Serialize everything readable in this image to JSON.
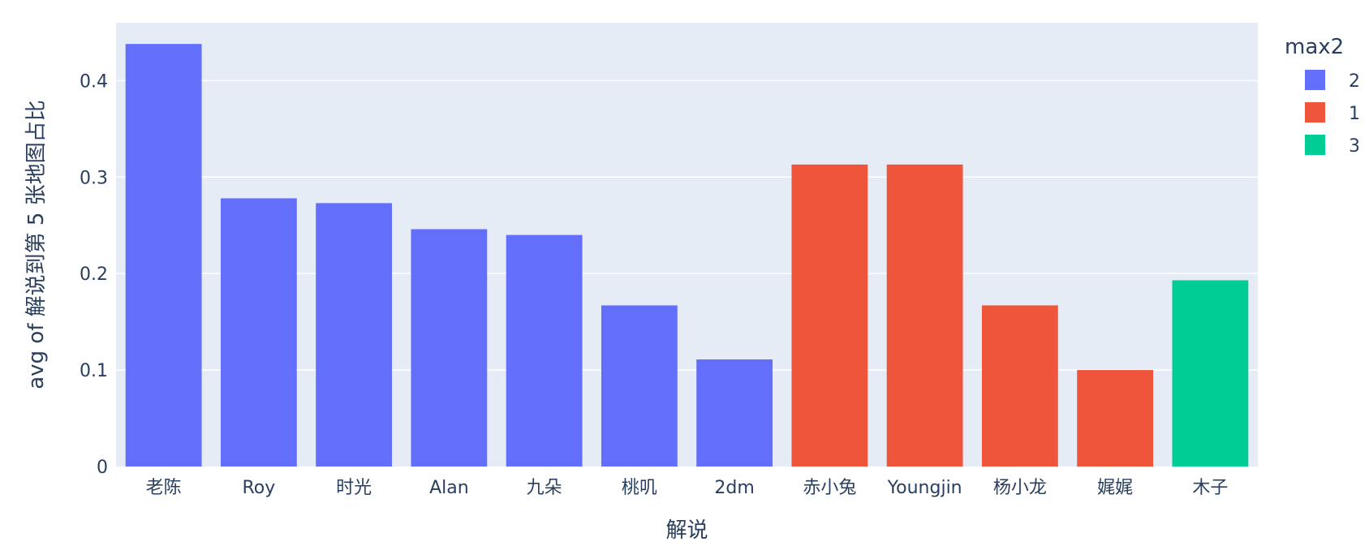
{
  "chart_data": {
    "type": "bar",
    "xlabel": "解说",
    "ylabel": "avg of 解说到第 5 张地图占比",
    "ylim": [
      0,
      0.46
    ],
    "yticks": [
      0,
      0.1,
      0.2,
      0.3,
      0.4
    ],
    "ytick_labels": [
      "0",
      "0.1",
      "0.2",
      "0.3",
      "0.4"
    ],
    "grid": true,
    "legend": {
      "title": "max2",
      "placement": "top-right",
      "entries": [
        {
          "name": "2",
          "color": "#636efa"
        },
        {
          "name": "1",
          "color": "#ef553b"
        },
        {
          "name": "3",
          "color": "#00cc96"
        }
      ]
    },
    "categories": [
      "老陈",
      "Roy",
      "时光",
      "Alan",
      "九朵",
      "桃叽",
      "2dm",
      "赤小兔",
      "Youngjin",
      "杨小龙",
      "娓娓",
      "木子"
    ],
    "values": [
      0.438,
      0.278,
      0.273,
      0.246,
      0.24,
      0.167,
      0.111,
      0.313,
      0.313,
      0.167,
      0.1,
      0.193
    ],
    "groups": [
      "2",
      "2",
      "2",
      "2",
      "2",
      "2",
      "2",
      "1",
      "1",
      "1",
      "1",
      "3"
    ],
    "colors": {
      "plot_background": "#e5ecf6",
      "grid": "#ffffff",
      "text": "#2a3f5f"
    }
  }
}
